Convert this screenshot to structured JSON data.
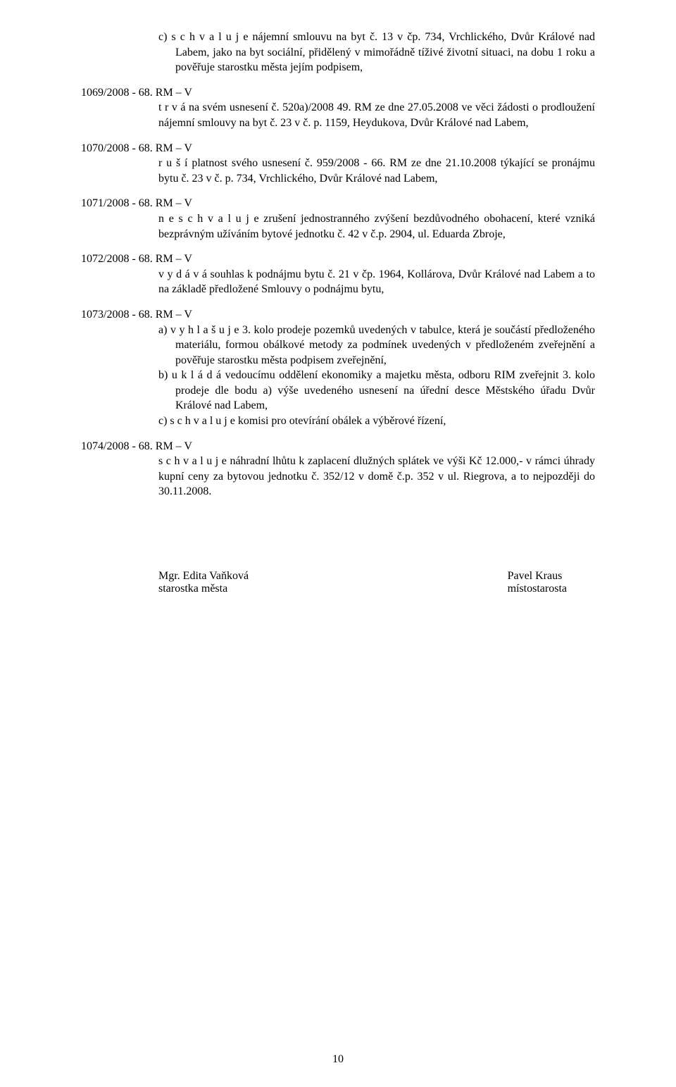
{
  "item_c_top": "c) s c h v a l u j e  nájemní smlouvu na byt č. 13 v čp. 734, Vrchlického, Dvůr Králové nad Labem, jako na byt sociální, přidělený v mimořádně tíživé životní situaci, na dobu 1 roku a pověřuje starostku města jejím podpisem,",
  "res1069": {
    "heading": "1069/2008 - 68. RM – V",
    "body": "t r v á  na svém usnesení č. 520a)/2008 49. RM ze dne 27.05.2008 ve věci žádosti  o prodloužení nájemní smlouvy na byt č. 23 v č. p. 1159, Heydukova, Dvůr Králové nad Labem,"
  },
  "res1070": {
    "heading": "1070/2008 - 68. RM – V",
    "body": "r u š í  platnost svého usnesení č. 959/2008 - 66. RM ze dne 21.10.2008 týkající se pronájmu bytu č. 23 v č. p. 734, Vrchlického, Dvůr Králové nad Labem,"
  },
  "res1071": {
    "heading": "1071/2008 - 68. RM – V",
    "body": "n e s c h v a l u j e  zrušení jednostranného zvýšení bezdůvodného obohacení, které vzniká bezprávným užíváním bytové jednotku č. 42 v č.p. 2904, ul. Eduarda Zbroje,"
  },
  "res1072": {
    "heading": "1072/2008 - 68. RM – V",
    "body": "v y d á v á  souhlas k podnájmu bytu č. 21 v čp. 1964, Kollárova, Dvůr Králové nad Labem  a to na základě předložené Smlouvy o podnájmu bytu,"
  },
  "res1073": {
    "heading": "1073/2008 - 68. RM – V",
    "a": "a) v y h l a š u j e  3. kolo prodeje pozemků uvedených v tabulce, která je součástí předloženého materiálu, formou obálkové metody za podmínek uvedených v předloženém zveřejnění a pověřuje starostku města podpisem zveřejnění,",
    "b": "b) u k l á d á  vedoucímu oddělení ekonomiky a majetku města, odboru RIM zveřejnit 3. kolo prodeje dle bodu a) výše uvedeného usnesení na úřední desce Městského úřadu Dvůr Králové nad Labem,",
    "c": "c) s c h v a l u j e komisi pro otevírání obálek a výběrové řízení,"
  },
  "res1074": {
    "heading": "1074/2008 - 68. RM – V",
    "body": "s c h v a l u j e  náhradní lhůtu k zaplacení dlužných splátek ve výši Kč 12.000,- v rámci úhrady kupní ceny za bytovou jednotku č. 352/12 v domě č.p. 352 v ul. Riegrova,   a to nejpozději do 30.11.2008."
  },
  "signatures": {
    "left_name": "Mgr. Edita Vaňková",
    "left_title": " starostka města",
    "right_name": "Pavel Kraus",
    "right_title": "místostarosta"
  },
  "page_number": "10"
}
